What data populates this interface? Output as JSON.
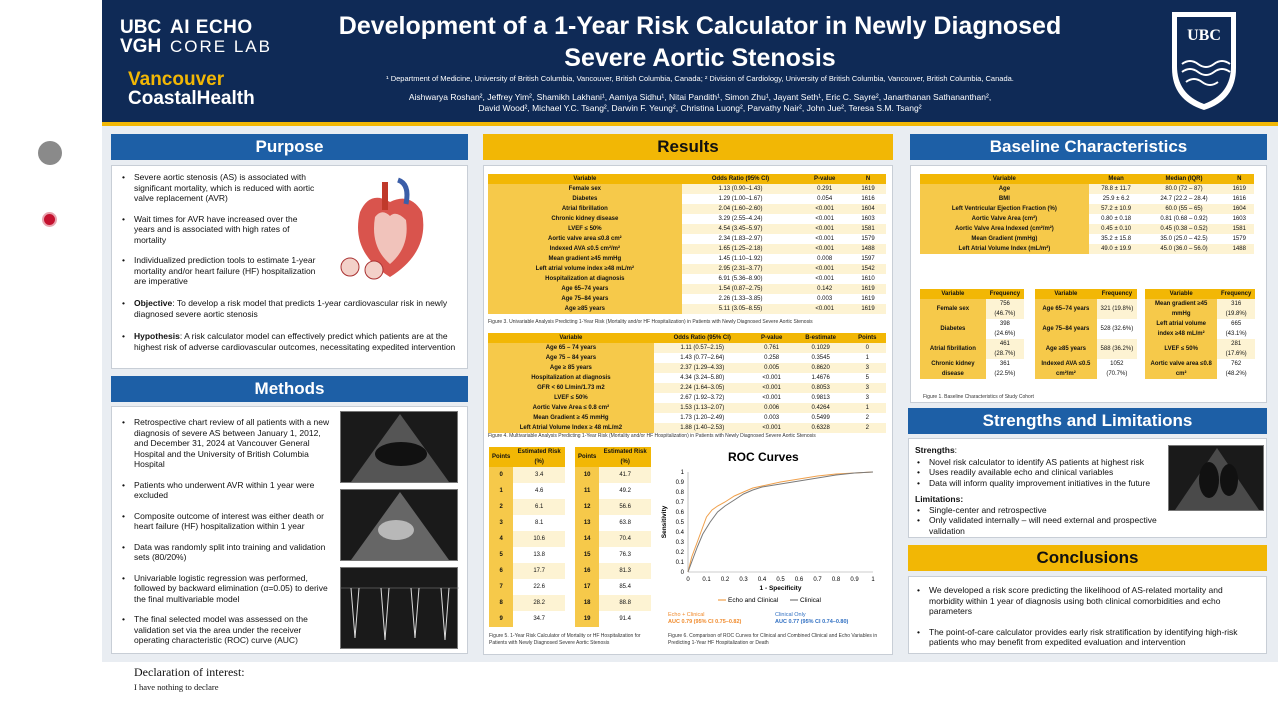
{
  "header": {
    "logo_ubc": "UBC",
    "logo_vgh": "VGH",
    "logo_ai": "AI ECHO",
    "logo_ai_sub": "CORE LAB",
    "logo_vch_1": "Vancouver",
    "logo_vch_2": "CoastalHealth",
    "title": "Development of a 1-Year Risk Calculator in Newly Diagnosed Severe Aortic Stenosis",
    "affiliations": "¹ Department of Medicine, University of British Columbia, Vancouver, British Columbia, Canada; ² Division of Cardiology, University of British Columbia, Vancouver, British Columbia, Canada.",
    "authors_1": "Aishwarya Roshan², Jeffrey Yim², Shamikh Lakhani¹, Aamiya Sidhu¹, Nitai Pandith¹, Simon Zhu¹, Jayant Seth¹, Eric C. Sayre², Janarthanan Sathananthan²,",
    "authors_2": "David Wood², Michael Y.C. Tsang², Darwin F. Yeung², Christina Luong², Parvathy Nair², John Jue², Teresa S.M. Tsang²",
    "crest_label": "UBC"
  },
  "purpose": {
    "heading": "Purpose",
    "bullets": [
      "Severe aortic stenosis (AS) is associated with significant mortality, which is reduced with aortic valve replacement (AVR)",
      "Wait times for AVR have increased over the years and is associated with high rates of mortality",
      "Individualized prediction tools to estimate 1-year mortality and/or heart failure (HF) hospitalization are imperative"
    ],
    "objective_label": "Objective",
    "objective_text": ": To develop a risk model that predicts 1-year cardiovascular risk in newly diagnosed severe aortic stenosis",
    "hypothesis_label": "Hypothesis",
    "hypothesis_text": ": A risk calculator model can effectively predict which patients are at the highest risk of adverse cardiovascular outcomes, necessitating expedited intervention"
  },
  "methods": {
    "heading": "Methods",
    "bullets": [
      "Retrospective chart review of all patients with a new diagnosis of severe AS between January 1, 2012, and December 31, 2024 at Vancouver General Hospital and the University of British Columbia Hospital",
      "Patients who underwent AVR within 1 year were excluded",
      "Composite outcome of interest was either death or heart failure (HF) hospitalization within 1 year",
      "Data was randomly split into training and validation sets (80/20%)",
      "Univariable logistic regression was performed, followed by backward elimination (α=0.05) to derive the final multivariable model",
      "The final selected model was assessed on the validation set via the area under the receiver operating characteristic (ROC) curve (AUC)"
    ]
  },
  "results": {
    "heading": "Results",
    "table3": {
      "headers": [
        "Variable",
        "Odds Ratio (95% CI)",
        "P-value",
        "N"
      ],
      "rows": [
        [
          "Female sex",
          "1.13 (0.90–1.43)",
          "0.291",
          "1619"
        ],
        [
          "Diabetes",
          "1.29 (1.00–1.67)",
          "0.054",
          "1616"
        ],
        [
          "Atrial fibrillation",
          "2.04 (1.60–2.60)",
          "<0.001",
          "1604"
        ],
        [
          "Chronic kidney disease",
          "3.29 (2.55–4.24)",
          "<0.001",
          "1603"
        ],
        [
          "LVEF ≤ 50%",
          "4.54 (3.45–5.97)",
          "<0.001",
          "1581"
        ],
        [
          "Aortic valve area ≤0.8 cm²",
          "2.34 (1.83–2.97)",
          "<0.001",
          "1579"
        ],
        [
          "Indexed AVA ≤0.5 cm²/m²",
          "1.65 (1.25–2.18)",
          "<0.001",
          "1488"
        ],
        [
          "Mean gradient ≥45 mmHg",
          "1.45 (1.10–1.92)",
          "0.008",
          "1597"
        ],
        [
          "Left atrial volume index ≥48 mL/m²",
          "2.95 (2.31–3.77)",
          "<0.001",
          "1542"
        ],
        [
          "Hospitalization at diagnosis",
          "6.91 (5.36–8.90)",
          "<0.001",
          "1610"
        ],
        [
          "Age 65–74 years",
          "1.54 (0.87–2.75)",
          "0.142",
          "1619"
        ],
        [
          "Age 75–84 years",
          "2.26 (1.33–3.85)",
          "0.003",
          "1619"
        ],
        [
          "Age ≥85 years",
          "5.11 (3.05–8.55)",
          "<0.001",
          "1619"
        ]
      ],
      "caption": "Figure 3. Univariable Analysis Predicting 1-Year Risk (Mortality and/or HF Hospitalization) in Patients with Newly Diagnosed Severe Aortic Stenosis"
    },
    "table4": {
      "headers": [
        "Variable",
        "Odds Ratio (95% CI)",
        "P-value",
        "B-estimate",
        "Points"
      ],
      "rows": [
        [
          "Age 65 – 74 years",
          "1.11 (0.57–2.15)",
          "0.761",
          "0.1029",
          "0"
        ],
        [
          "Age 75 – 84 years",
          "1.43 (0.77–2.64)",
          "0.258",
          "0.3545",
          "1"
        ],
        [
          "Age ≥ 85 years",
          "2.37 (1.29–4.33)",
          "0.005",
          "0.8620",
          "3"
        ],
        [
          "Hospitalization at diagnosis",
          "4.34 (3.24–5.80)",
          "<0.001",
          "1.4676",
          "5"
        ],
        [
          "GFR < 60 L/min/1.73 m2",
          "2.24 (1.64–3.05)",
          "<0.001",
          "0.8053",
          "3"
        ],
        [
          "LVEF ≤ 50%",
          "2.67 (1.92–3.72)",
          "<0.001",
          "0.9813",
          "3"
        ],
        [
          "Aortic Valve Area ≤ 0.8 cm²",
          "1.53 (1.13–2.07)",
          "0.006",
          "0.4264",
          "1"
        ],
        [
          "Mean Gradient ≥ 45 mmHg",
          "1.73 (1.20–2.49)",
          "0.003",
          "0.5499",
          "2"
        ],
        [
          "Left Atrial Volume Index ≥ 48 mL/m2",
          "1.88 (1.40–2.53)",
          "<0.001",
          "0.6328",
          "2"
        ]
      ],
      "caption": "Figure 4. Multivariable Analysis Predicting 1-Year Risk (Mortality and/or HF Hospitalization) in Patients with Newly Diagnosed Severe Aortic Stenosis"
    },
    "risk_table": {
      "headers": [
        "Points",
        "Estimated Risk (%)"
      ],
      "left": [
        [
          "0",
          "3.4"
        ],
        [
          "1",
          "4.6"
        ],
        [
          "2",
          "6.1"
        ],
        [
          "3",
          "8.1"
        ],
        [
          "4",
          "10.6"
        ],
        [
          "5",
          "13.8"
        ],
        [
          "6",
          "17.7"
        ],
        [
          "7",
          "22.6"
        ],
        [
          "8",
          "28.2"
        ],
        [
          "9",
          "34.7"
        ]
      ],
      "right": [
        [
          "10",
          "41.7"
        ],
        [
          "11",
          "49.2"
        ],
        [
          "12",
          "56.6"
        ],
        [
          "13",
          "63.8"
        ],
        [
          "14",
          "70.4"
        ],
        [
          "15",
          "76.3"
        ],
        [
          "16",
          "81.3"
        ],
        [
          "17",
          "85.4"
        ],
        [
          "18",
          "88.8"
        ],
        [
          "19",
          "91.4"
        ]
      ],
      "caption": "Figure 5. 1-Year Risk Calculator of Mortality or HF Hospitalization for Patients with Newly Diagnosed Severe Aortic Stenosis"
    },
    "roc": {
      "auc_combined_label": "Echo + Clinical",
      "auc_combined_value": "AUC 0.79 (95% CI 0.75–0.82)",
      "auc_clinical_label": "Clinical Only",
      "auc_clinical_value": "AUC 0.77 (95% CI 0.74–0.80)",
      "caption": "Figure 6. Comparison of ROC Curves for Clinical and Combined Clinical and Echo Variables in Predicting 1-Year HF Hospitalization or Death"
    }
  },
  "chart_data": {
    "type": "line",
    "title": "ROC Curves",
    "xlabel": "1 - Specificity",
    "ylabel": "Sensitivity",
    "xlim": [
      0,
      1
    ],
    "ylim": [
      0,
      1
    ],
    "xticks": [
      "0",
      "0.1",
      "0.2",
      "0.3",
      "0.4",
      "0.5",
      "0.6",
      "0.7",
      "0.8",
      "0.9",
      "1"
    ],
    "yticks": [
      "0",
      "0.1",
      "0.2",
      "0.3",
      "0.4",
      "0.5",
      "0.6",
      "0.7",
      "0.8",
      "0.9",
      "1"
    ],
    "legend_position": "bottom",
    "series": [
      {
        "name": "Echo and Clinical",
        "color": "#f0a04b",
        "x": [
          0,
          0.02,
          0.05,
          0.08,
          0.1,
          0.13,
          0.16,
          0.2,
          0.25,
          0.3,
          0.35,
          0.4,
          0.5,
          0.6,
          0.7,
          0.8,
          0.9,
          1
        ],
        "y": [
          0,
          0.15,
          0.3,
          0.45,
          0.55,
          0.62,
          0.66,
          0.7,
          0.76,
          0.8,
          0.84,
          0.86,
          0.9,
          0.93,
          0.96,
          0.98,
          0.99,
          1
        ]
      },
      {
        "name": "Clinical",
        "color": "#7a7a7a",
        "x": [
          0,
          0.02,
          0.05,
          0.08,
          0.12,
          0.16,
          0.2,
          0.25,
          0.3,
          0.35,
          0.4,
          0.5,
          0.6,
          0.7,
          0.8,
          0.9,
          1
        ],
        "y": [
          0,
          0.1,
          0.25,
          0.38,
          0.5,
          0.6,
          0.66,
          0.72,
          0.78,
          0.82,
          0.85,
          0.88,
          0.91,
          0.94,
          0.97,
          0.99,
          1
        ]
      }
    ]
  },
  "baseline": {
    "heading": "Baseline Characteristics",
    "table_headers": [
      "Variable",
      "Mean",
      "Median (IQR)",
      "N"
    ],
    "rows": [
      [
        "Age",
        "78.8 ± 11.7",
        "80.0 (72 – 87)",
        "1619"
      ],
      [
        "BMI",
        "25.9 ± 6.2",
        "24.7 (22.2 – 28.4)",
        "1616"
      ],
      [
        "Left Ventricular Ejection Fraction (%)",
        "57.2 ± 10.9",
        "60.0 (55 – 65)",
        "1604"
      ],
      [
        "Aortic Valve Area (cm²)",
        "0.80 ± 0.18",
        "0.81 (0.68 – 0.92)",
        "1603"
      ],
      [
        "Aortic Valve Area Indexed (cm²/m²)",
        "0.45 ± 0.10",
        "0.45 (0.38 – 0.52)",
        "1581"
      ],
      [
        "Mean Gradient (mmHg)",
        "35.2 ± 15.8",
        "35.0 (25.0 – 42.5)",
        "1579"
      ],
      [
        "Left Atrial Volume Index (mL/m²)",
        "49.0 ± 19.9",
        "45.0 (36.0 – 56.0)",
        "1488"
      ]
    ],
    "freq_headers": [
      "Variable",
      "Frequency"
    ],
    "freq1": [
      [
        "Female sex",
        "756",
        "(46.7%)"
      ],
      [
        "Diabetes",
        "398",
        "(24.6%)"
      ],
      [
        "Atrial fibrillation",
        "461",
        "(28.7%)"
      ],
      [
        "Chronic kidney disease",
        "361",
        "(22.5%)"
      ]
    ],
    "freq2": [
      [
        "Age 65–74 years",
        "321",
        "(19.8%)"
      ],
      [
        "Age 75–84 years",
        "528",
        "(32.6%)"
      ],
      [
        "Age ≥85 years",
        "588",
        "(36.2%)"
      ],
      [
        "Indexed AVA ≤0.5 cm²/m²",
        "1052",
        "(70.7%)"
      ]
    ],
    "freq3": [
      [
        "Mean gradient ≥45 mmHg",
        "316",
        "(19.8%)"
      ],
      [
        "Left atrial volume index ≥48 mL/m²",
        "665",
        "(43.1%)"
      ],
      [
        "LVEF ≤ 50%",
        "281",
        "(17.6%)"
      ],
      [
        "Aortic valve area ≤0.8 cm²",
        "762",
        "(48.2%)"
      ]
    ],
    "caption": "Figure 1. Baseline Characteristics of Study Cohort"
  },
  "strengths": {
    "heading": "Strengths and Limitations",
    "strengths_label": "Strengths",
    "strengths": [
      "Novel risk calculator to identify AS patients at highest risk",
      "Uses readily available echo and clinical variables",
      "Data will inform quality improvement initiatives in the future"
    ],
    "limitations_label": "Limitations:",
    "limitations": [
      "Single-center and retrospective",
      "Only validated internally – will need external and prospective validation"
    ]
  },
  "conclusions": {
    "heading": "Conclusions",
    "bullets": [
      "We developed a risk score predicting the likelihood of AS-related mortality and morbidity within 1 year of diagnosis using both clinical comorbidities and echo parameters",
      "The point-of-care calculator provides early risk stratification by identifying high-risk patients who may benefit from expedited evaluation and intervention"
    ]
  },
  "declaration": {
    "heading": "Declaration of interest:",
    "text": "I have nothing to declare"
  },
  "colors": {
    "navy": "#0f2a56",
    "blue": "#1d5fa6",
    "gold": "#f2b705"
  }
}
